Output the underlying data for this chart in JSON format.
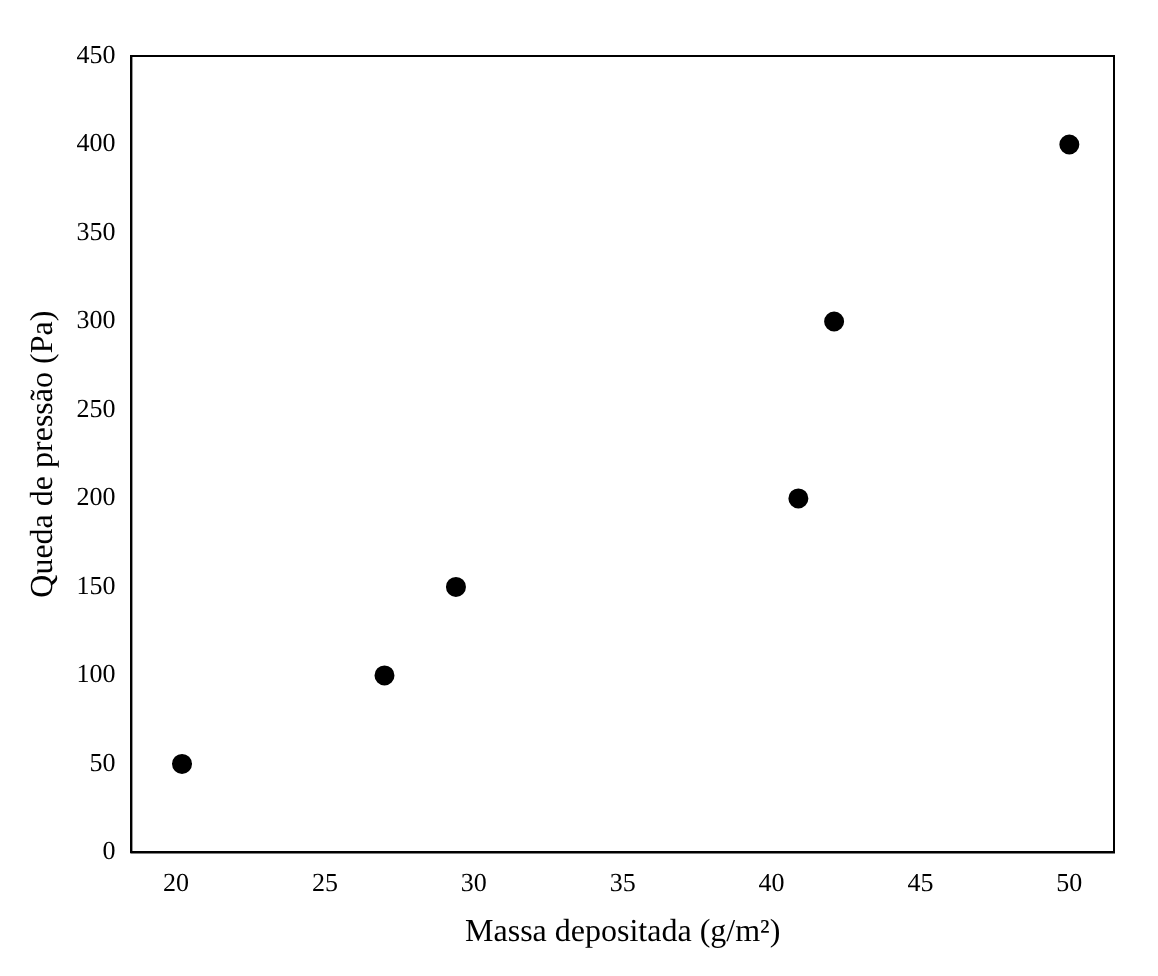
{
  "chart_data": {
    "type": "scatter",
    "xlabel": "Massa depositada (g/m²)",
    "ylabel": "Queda de pressão (Pa)",
    "x": [
      20.2,
      27,
      29.4,
      40.9,
      42.1,
      50
    ],
    "series": [
      {
        "color": "#000000",
        "values": [
          50,
          100,
          150,
          200,
          300,
          400
        ]
      }
    ],
    "xlim": [
      18.5,
      51.5
    ],
    "xticks": [
      20,
      25,
      30,
      35,
      40,
      45,
      50
    ],
    "ylim": [
      0,
      450
    ],
    "yticks": [
      0,
      50,
      100,
      150,
      200,
      250,
      300,
      350,
      400,
      450
    ],
    "grid": false,
    "legend": false,
    "marker": "circle"
  }
}
